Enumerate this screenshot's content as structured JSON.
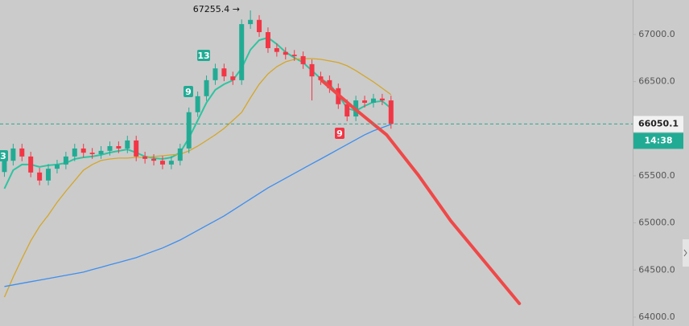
{
  "chart_data": {
    "type": "candlestick",
    "high_label": "67255.4 →",
    "signals": [
      "3",
      "13",
      "9",
      "9"
    ],
    "last_price": 66050.1,
    "time_left": "14:38",
    "xlim": [
      -0.5,
      71.5
    ],
    "ylim": [
      63906,
      67366
    ],
    "yticks": [
      {
        "value": 64000,
        "label": "64000.0"
      },
      {
        "value": 64500,
        "label": "64500.0"
      },
      {
        "value": 65000,
        "label": "65000.0"
      },
      {
        "value": 65500,
        "label": "65500.0"
      },
      {
        "value": 66000,
        "label": "66000.0"
      },
      {
        "value": 66500,
        "label": "66500.0"
      },
      {
        "value": 67000,
        "label": "67000.0"
      }
    ],
    "up_color": "#22ab94",
    "down_color": "#f23645",
    "open": [
      65540,
      65660,
      65790,
      65705,
      65535,
      65450,
      65575,
      65620,
      65705,
      65790,
      65745,
      65730,
      65765,
      65815,
      65790,
      65875,
      65705,
      65680,
      65660,
      65620,
      65660,
      65790,
      66175,
      66345,
      66515,
      66640,
      66555,
      66515,
      67110,
      67155,
      67025,
      66855,
      66815,
      66785,
      66770,
      66685,
      66555,
      66515,
      66430,
      66260,
      66130,
      66300,
      66275,
      66320,
      66300
    ],
    "high": [
      65710,
      65840,
      65840,
      65755,
      65585,
      65625,
      65670,
      65755,
      65840,
      65840,
      65795,
      65815,
      65865,
      65865,
      65925,
      65925,
      65755,
      65730,
      65710,
      65710,
      65840,
      66225,
      66395,
      66565,
      66690,
      66690,
      66605,
      67160,
      67255.4,
      67205,
      67075,
      66905,
      66865,
      66835,
      66820,
      66735,
      66605,
      66565,
      66480,
      66310,
      66350,
      66350,
      66370,
      66370,
      66350
    ],
    "low": [
      65490,
      65610,
      65655,
      65485,
      65400,
      65400,
      65525,
      65570,
      65655,
      65695,
      65680,
      65680,
      65715,
      65740,
      65740,
      65655,
      65630,
      65610,
      65570,
      65570,
      65610,
      65740,
      66125,
      66295,
      66465,
      66505,
      66465,
      66465,
      67060,
      66975,
      66805,
      66765,
      66735,
      66720,
      66635,
      66300,
      66465,
      66380,
      66210,
      66080,
      66080,
      66225,
      66225,
      66250,
      66000
    ],
    "close": [
      65660,
      65790,
      65705,
      65535,
      65450,
      65575,
      65620,
      65705,
      65790,
      65745,
      65730,
      65765,
      65815,
      65790,
      65875,
      65705,
      65680,
      65660,
      65620,
      65660,
      65790,
      66175,
      66345,
      66515,
      66640,
      66555,
      66515,
      67110,
      67155,
      67025,
      66855,
      66815,
      66785,
      66770,
      66685,
      66555,
      66515,
      66430,
      66260,
      66130,
      66300,
      66275,
      66320,
      66300,
      66050.1
    ],
    "series": [
      {
        "color": "#2ec4a0",
        "values": [
          65364,
          65560,
          65620,
          65620,
          65594,
          65611,
          65620,
          65636,
          65679,
          65696,
          65705,
          65722,
          65747,
          65764,
          65781,
          65747,
          65705,
          65688,
          65679,
          65696,
          65747,
          65901,
          66088,
          66276,
          66412,
          66472,
          66514,
          66642,
          66838,
          66940,
          66966,
          66898,
          66813,
          66753,
          66702,
          66617,
          66531,
          66472,
          66361,
          66216,
          66190,
          66241,
          66284,
          66293,
          66216
        ]
      },
      {
        "color": "#d4a62a",
        "values": [
          64213,
          64426,
          64622,
          64810,
          64963,
          65083,
          65219,
          65338,
          65449,
          65560,
          65620,
          65662,
          65679,
          65688,
          65688,
          65696,
          65696,
          65705,
          65713,
          65722,
          65730,
          65764,
          65815,
          65875,
          65935,
          66003,
          66088,
          66173,
          66327,
          66472,
          66582,
          66659,
          66710,
          66736,
          66744,
          66744,
          66736,
          66719,
          66702,
          66668,
          66617,
          66557,
          66497,
          66429,
          66361
        ]
      },
      {
        "color": "#3d8ef0",
        "values": [
          64325,
          64342,
          64359,
          64376,
          64393,
          64410,
          64427,
          64444,
          64461,
          64478,
          64504,
          64529,
          64555,
          64580,
          64606,
          64631,
          64666,
          64700,
          64734,
          64776,
          64819,
          64870,
          64921,
          64972,
          65023,
          65074,
          65134,
          65194,
          65253,
          65313,
          65373,
          65424,
          65475,
          65526,
          65577,
          65628,
          65679,
          65730,
          65782,
          65833,
          65884,
          65935,
          65978,
          66012,
          66046
        ]
      }
    ],
    "trendline": {
      "color": "#f04848",
      "x": [
        36.1,
        39.8,
        43.5,
        47.1,
        50.8,
        58.6
      ],
      "values": [
        66514,
        66216,
        65935,
        65508,
        65022,
        64145
      ]
    }
  }
}
